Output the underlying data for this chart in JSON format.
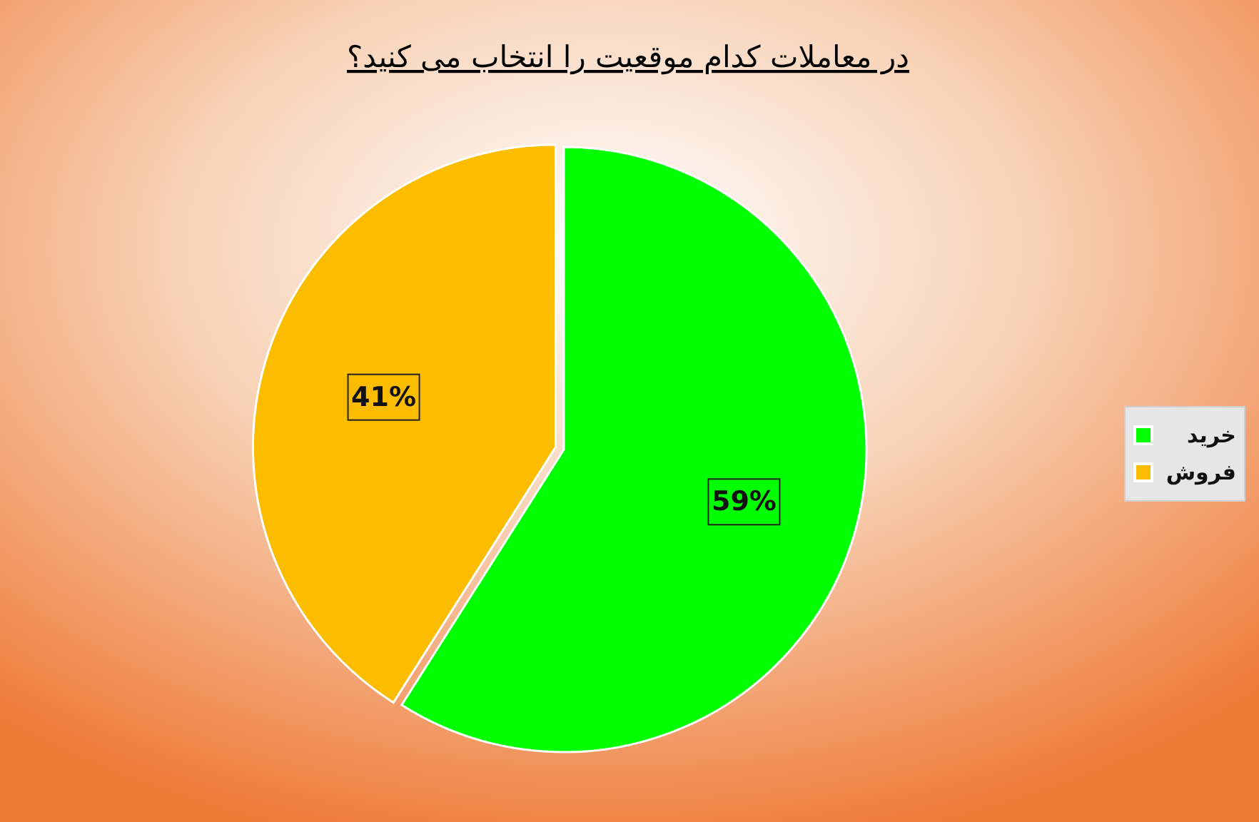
{
  "chart_data": {
    "type": "pie",
    "title": "در معاملات کدام موقعیت را انتخاب می کنید؟",
    "categories": [
      "خرید",
      "فروش"
    ],
    "values": [
      59,
      41
    ],
    "colors": [
      "#00ff00",
      "#fcbc00"
    ],
    "value_labels": [
      "59%",
      "41%"
    ],
    "legend": "right"
  }
}
